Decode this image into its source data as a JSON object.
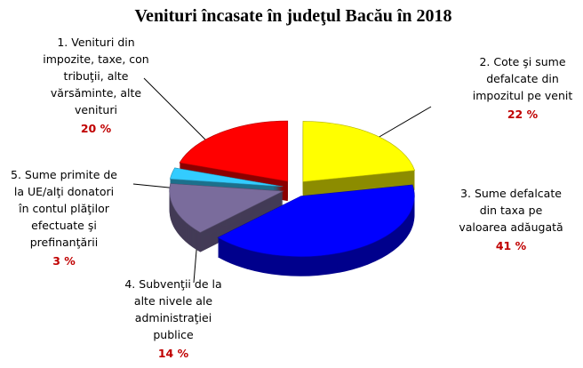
{
  "chart_data": {
    "type": "pie3d",
    "title": "Venituri încasate în judeţul Bacău în 2018",
    "categories": [
      [
        "1. Venituri din",
        "impozite, taxe, con",
        "tribuţii, alte",
        "vărsăminte, alte",
        "venituri"
      ],
      [
        "2. Cote şi sume",
        "defalcate din",
        "impozitul pe venit"
      ],
      [
        "3. Sume defalcate",
        "din taxa pe",
        "valoarea adăugată"
      ],
      [
        "4. Subvenţii de la",
        "alte nivele ale",
        "administraţiei",
        "publice"
      ],
      [
        "5. Sume primite de",
        "la UE/alţi donatori",
        "în contul plăţilor",
        "efectuate şi",
        "prefinanţării"
      ]
    ],
    "values": [
      20,
      22,
      41,
      14,
      3
    ],
    "value_labels": [
      "20 %",
      "22 %",
      "41 %",
      "14 %",
      "3 %"
    ],
    "colors": [
      "#ff0000",
      "#ffff00",
      "#0000ff",
      "#7a6c9c",
      "#33ccff"
    ]
  }
}
